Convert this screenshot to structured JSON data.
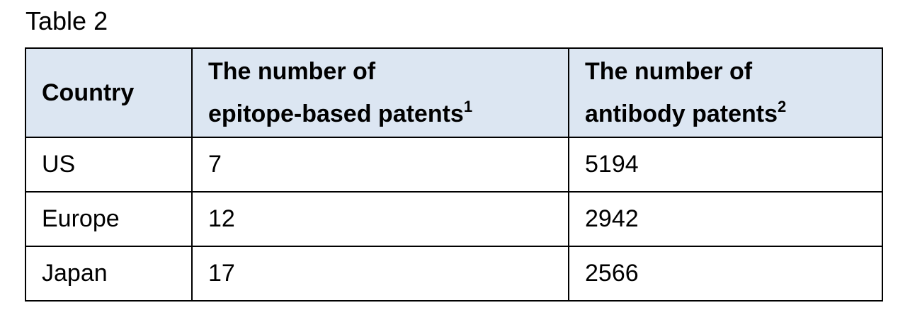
{
  "title": "Table 2",
  "table": {
    "header": [
      {
        "lines": [
          "Country"
        ]
      },
      {
        "lines": [
          "The number of",
          "epitope-based patents"
        ],
        "note": "1"
      },
      {
        "lines": [
          "The number of",
          "antibody patents"
        ],
        "note": "2"
      }
    ],
    "rows": [
      [
        "US",
        7,
        5194
      ],
      [
        "Europe",
        12,
        2942
      ],
      [
        "Japan",
        17,
        2566
      ]
    ]
  }
}
